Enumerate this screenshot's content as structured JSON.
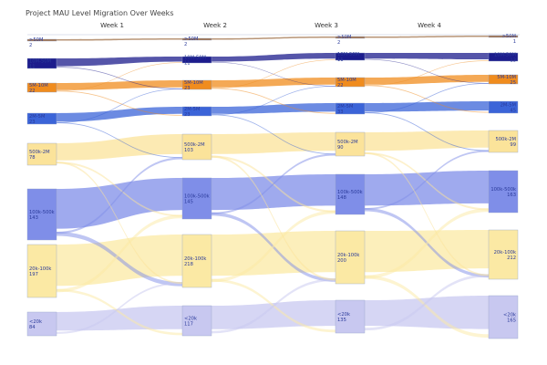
{
  "title": "Project MAU Level Migration Over Weeks",
  "colors": {
    "gt50m": "#a0714a",
    "l10m50m": "#1c1c8c",
    "l5m10m": "#f08c1e",
    "l2m5m": "#3b64d8",
    "l500k2m": "#fbe39a",
    "l100k500k": "#7f8ee8",
    "l20k100k": "#fbe9a4",
    "lt20k": "#c8c8f0"
  },
  "weeks": [
    "Week 1",
    "Week 2",
    "Week 3",
    "Week 4"
  ],
  "levels": [
    {
      "key": "gt50m",
      "label": ">50M"
    },
    {
      "key": "l10m50m",
      "label": "10M-50M"
    },
    {
      "key": "l5m10m",
      "label": "5M-10M"
    },
    {
      "key": "l2m5m",
      "label": "2M-5M"
    },
    {
      "key": "l500k2m",
      "label": "500k-2M"
    },
    {
      "key": "l100k500k",
      "label": "100k-500k"
    },
    {
      "key": "l20k100k",
      "label": "20k-100k"
    },
    {
      "key": "lt20k",
      "label": "<20k"
    }
  ],
  "counts": [
    {
      "gt50m": 2,
      "l10m50m": 11,
      "l5m10m": 22,
      "l2m5m": 23,
      "l500k2m": 78,
      "l100k500k": 143,
      "l20k100k": 197,
      "lt20k": 84
    },
    {
      "gt50m": 2,
      "l10m50m": 11,
      "l5m10m": 23,
      "l2m5m": 23,
      "l500k2m": 103,
      "l100k500k": 145,
      "l20k100k": 218,
      "lt20k": 117
    },
    {
      "gt50m": 2,
      "l10m50m": 11,
      "l5m10m": 22,
      "l2m5m": 33,
      "l500k2m": 90,
      "l100k500k": 148,
      "l20k100k": 200,
      "lt20k": 135
    },
    {
      "gt50m": 1,
      "l10m50m": 13,
      "l5m10m": 25,
      "l2m5m": 45,
      "l500k2m": 99,
      "l100k500k": 163,
      "l20k100k": 212,
      "lt20k": 165
    }
  ]
}
